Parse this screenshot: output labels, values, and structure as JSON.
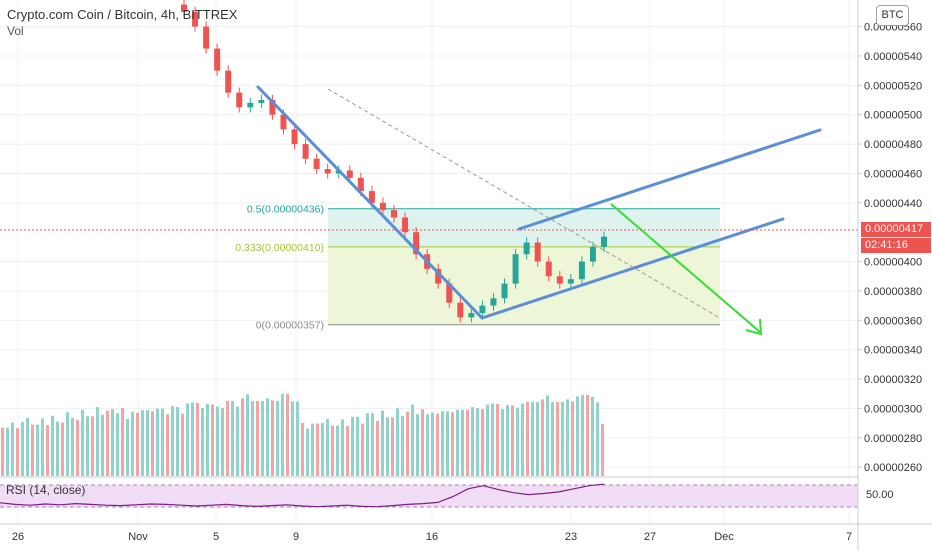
{
  "header": {
    "title": "Crypto.com Coin / Bitcoin, 4h, BITTREX",
    "vol_label": "Vol",
    "currency_button": "BTC",
    "rsi_label": "RSI (14, close)"
  },
  "price_tags": {
    "last_price": "0.00000417",
    "countdown": "02:41:16"
  },
  "colors": {
    "up": "#26a69a",
    "down": "#ef5350",
    "trendline": "#5b8ed6",
    "projection": "#33dd33",
    "fib_upper_fill": "#dff3ee",
    "fib_lower_fill": "#eef6d8",
    "rsi_line": "#7b1f7e",
    "rsi_band": "#f1dcf6"
  },
  "chart_data": [
    {
      "type": "candlestick",
      "title": "Crypto.com Coin / Bitcoin, 4h, BITTREX",
      "x_ticks": [
        "26",
        "Nov",
        "5",
        "9",
        "16",
        "23",
        "27",
        "Dec",
        "7"
      ],
      "y_ticks": [
        "0.00000560",
        "0.00000540",
        "0.00000520",
        "0.00000500",
        "0.00000480",
        "0.00000460",
        "0.00000440",
        "0.00000400",
        "0.00000380",
        "0.00000360",
        "0.00000340",
        "0.00000320",
        "0.00000300",
        "0.00000280",
        "0.00000260"
      ],
      "ylim": [
        2.54e-06,
        5.74e-06
      ],
      "closes": [
        5.7e-06,
        5.6e-06,
        5.45e-06,
        5.3e-06,
        5.15e-06,
        5.05e-06,
        5.08e-06,
        5.1e-06,
        5e-06,
        4.9e-06,
        4.8e-06,
        4.7e-06,
        4.63e-06,
        4.6e-06,
        4.62e-06,
        4.57e-06,
        4.48e-06,
        4.4e-06,
        4.35e-06,
        4.3e-06,
        4.2e-06,
        4.05e-06,
        3.95e-06,
        3.85e-06,
        3.72e-06,
        3.62e-06,
        3.65e-06,
        3.7e-06,
        3.75e-06,
        3.85e-06,
        4.05e-06,
        4.13e-06,
        4e-06,
        3.9e-06,
        3.85e-06,
        3.88e-06,
        4e-06,
        4.1e-06,
        4.17e-06
      ],
      "fib_levels": [
        {
          "label": "0.5(0.00000436)",
          "value": 4.36e-06
        },
        {
          "label": "0.333(0.00000410)",
          "value": 4.1e-06
        },
        {
          "label": "0(0.00000357)",
          "value": 3.57e-06
        }
      ],
      "volume": [
        0.47,
        0.45,
        0.48,
        0.46,
        0.5,
        0.52,
        0.49,
        0.47,
        0.51,
        0.48,
        0.55,
        0.53,
        0.5,
        0.58,
        0.56,
        0.52,
        0.6,
        0.57,
        0.55,
        0.62,
        0.58,
        0.6,
        0.65,
        0.59,
        0.62,
        0.55,
        0.6,
        0.57,
        0.63,
        0.61,
        0.58,
        0.64,
        0.62,
        0.6,
        0.66,
        0.63,
        0.6,
        0.68,
        0.67,
        0.7,
        0.63,
        0.65,
        0.68,
        0.64,
        0.66,
        0.71,
        0.69,
        0.67,
        0.73,
        0.75,
        0.72,
        0.7,
        0.68,
        0.74,
        0.7,
        0.73,
        0.78,
        0.76,
        0.72,
        0.7
      ]
    },
    {
      "type": "line",
      "title": "RSI (14, close)",
      "y_ticks": [
        "50.00"
      ],
      "ylim": [
        0,
        100
      ],
      "values": [
        44,
        40,
        38,
        41,
        39,
        42,
        40,
        38,
        37,
        39,
        41,
        40,
        38,
        36,
        38,
        40,
        37,
        35,
        37,
        39,
        36,
        34,
        36,
        38,
        35,
        34,
        37,
        40,
        42,
        45,
        60,
        80,
        88,
        78,
        70,
        65,
        68,
        72,
        80,
        88,
        92
      ]
    }
  ]
}
